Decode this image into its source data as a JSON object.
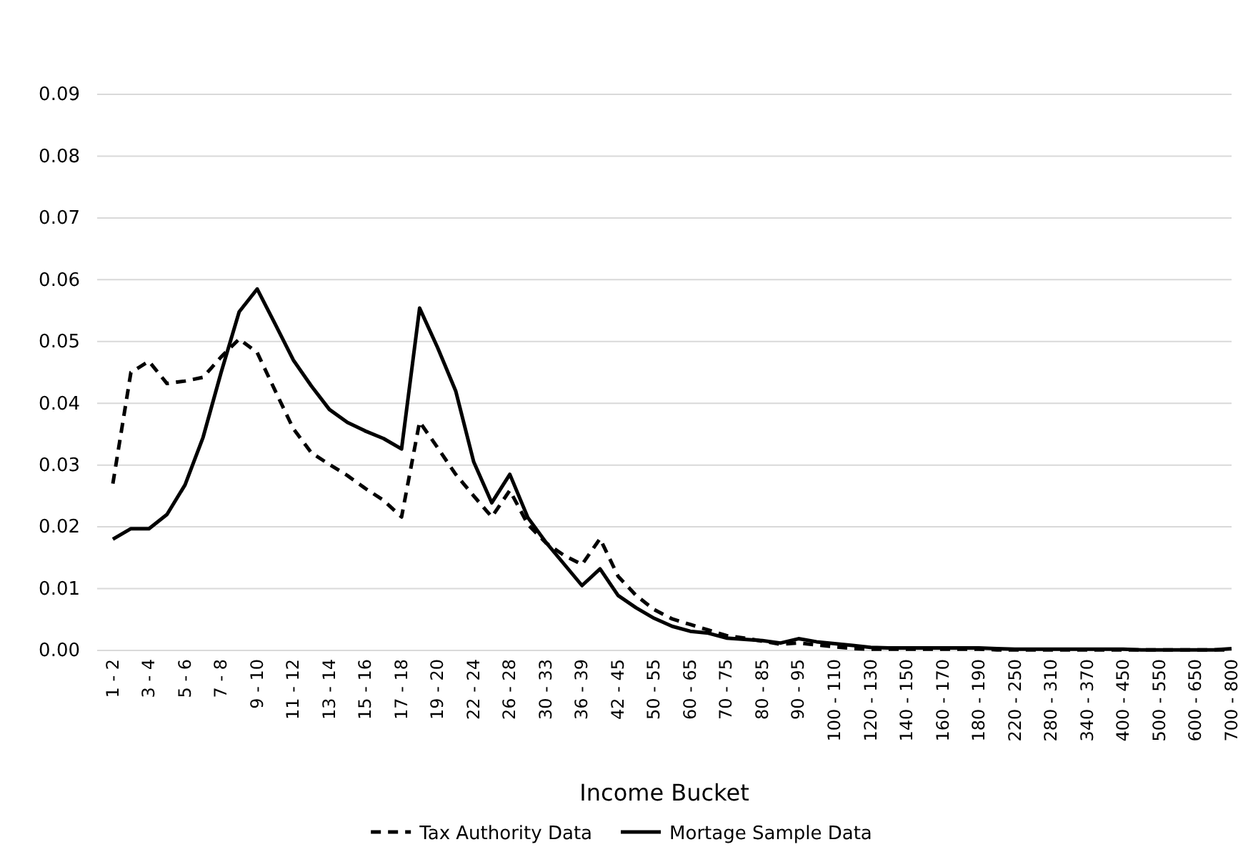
{
  "chart_data": {
    "type": "line",
    "xlabel": "Income Bucket",
    "categories": [
      "1 - 2",
      null,
      "3 - 4",
      null,
      "5 - 6",
      null,
      "7 - 8",
      null,
      "9 - 10",
      null,
      "11 - 12",
      null,
      "13 - 14",
      null,
      "15 - 16",
      null,
      "17 - 18",
      null,
      "19 - 20",
      null,
      "22 - 24",
      null,
      "26 - 28",
      null,
      "30 - 33",
      null,
      "36 - 39",
      null,
      "42 - 45",
      null,
      "50 - 55",
      null,
      "60 - 65",
      null,
      "70 - 75",
      null,
      "80 - 85",
      null,
      "90 - 95",
      null,
      "100 - 110",
      null,
      "120 - 130",
      null,
      "140 - 150",
      null,
      "160 - 170",
      null,
      "180 - 190",
      null,
      "220 - 250",
      null,
      "280 - 310",
      null,
      "340 - 370",
      null,
      "400 - 450",
      null,
      "500 - 550",
      null,
      "600 - 650",
      null,
      "700 - 800"
    ],
    "series": [
      {
        "name": "Tax Authority Data",
        "color": "#000000",
        "line_style": "dashed",
        "values": [
          0.027,
          0.045,
          0.0468,
          0.0432,
          0.0436,
          0.0442,
          0.0475,
          0.0504,
          0.0482,
          0.042,
          0.0359,
          0.032,
          0.0301,
          0.0283,
          0.0262,
          0.0243,
          0.0216,
          0.037,
          0.0328,
          0.0285,
          0.025,
          0.0216,
          0.0259,
          0.0204,
          0.0174,
          0.0154,
          0.0139,
          0.0181,
          0.012,
          0.0089,
          0.0066,
          0.0051,
          0.0042,
          0.0033,
          0.0024,
          0.002,
          0.0015,
          0.001,
          0.0012,
          0.0009,
          0.0006,
          0.0003,
          0.0002,
          0.0002,
          0.0002,
          0.0002,
          0.0002,
          0.0002,
          0.0002,
          0.0001,
          0.0001,
          0.0001,
          0.0001,
          0.0001,
          0.0001,
          0.0001,
          0.0001,
          0.0001,
          0.0001,
          0.0001,
          0.0001,
          0.0001,
          0.0001
        ]
      },
      {
        "name": "Mortage Sample Data",
        "color": "#000000",
        "line_style": "solid",
        "values": [
          0.018,
          0.0197,
          0.0197,
          0.022,
          0.0268,
          0.0345,
          0.045,
          0.0548,
          0.0585,
          0.0528,
          0.047,
          0.0428,
          0.039,
          0.0369,
          0.0355,
          0.0343,
          0.0326,
          0.0554,
          0.049,
          0.042,
          0.0305,
          0.0239,
          0.0285,
          0.0215,
          0.0175,
          0.014,
          0.0105,
          0.0132,
          0.0089,
          0.0069,
          0.0052,
          0.0039,
          0.0031,
          0.0028,
          0.002,
          0.0018,
          0.0016,
          0.0012,
          0.0019,
          0.0014,
          0.0011,
          0.0008,
          0.0005,
          0.0004,
          0.0004,
          0.0004,
          0.0004,
          0.0004,
          0.0004,
          0.0003,
          0.0002,
          0.0002,
          0.0002,
          0.0002,
          0.0002,
          0.0002,
          0.0002,
          0.0001,
          0.0001,
          0.0001,
          0.0001,
          0.0001,
          0.0003
        ]
      }
    ],
    "ylim": [
      0,
      0.09
    ],
    "yticks": [
      {
        "value": 0,
        "label": "0.00"
      },
      {
        "value": 0.01,
        "label": "0.01"
      },
      {
        "value": 0.02,
        "label": "0.02"
      },
      {
        "value": 0.03,
        "label": "0.03"
      },
      {
        "value": 0.04,
        "label": "0.04"
      },
      {
        "value": 0.05,
        "label": "0.05"
      },
      {
        "value": 0.06,
        "label": "0.06"
      },
      {
        "value": 0.07,
        "label": "0.07"
      },
      {
        "value": 0.08,
        "label": "0.08"
      },
      {
        "value": 0.09,
        "label": "0.09"
      }
    ],
    "grid": "y",
    "legend": "bottom",
    "marker": "none"
  }
}
